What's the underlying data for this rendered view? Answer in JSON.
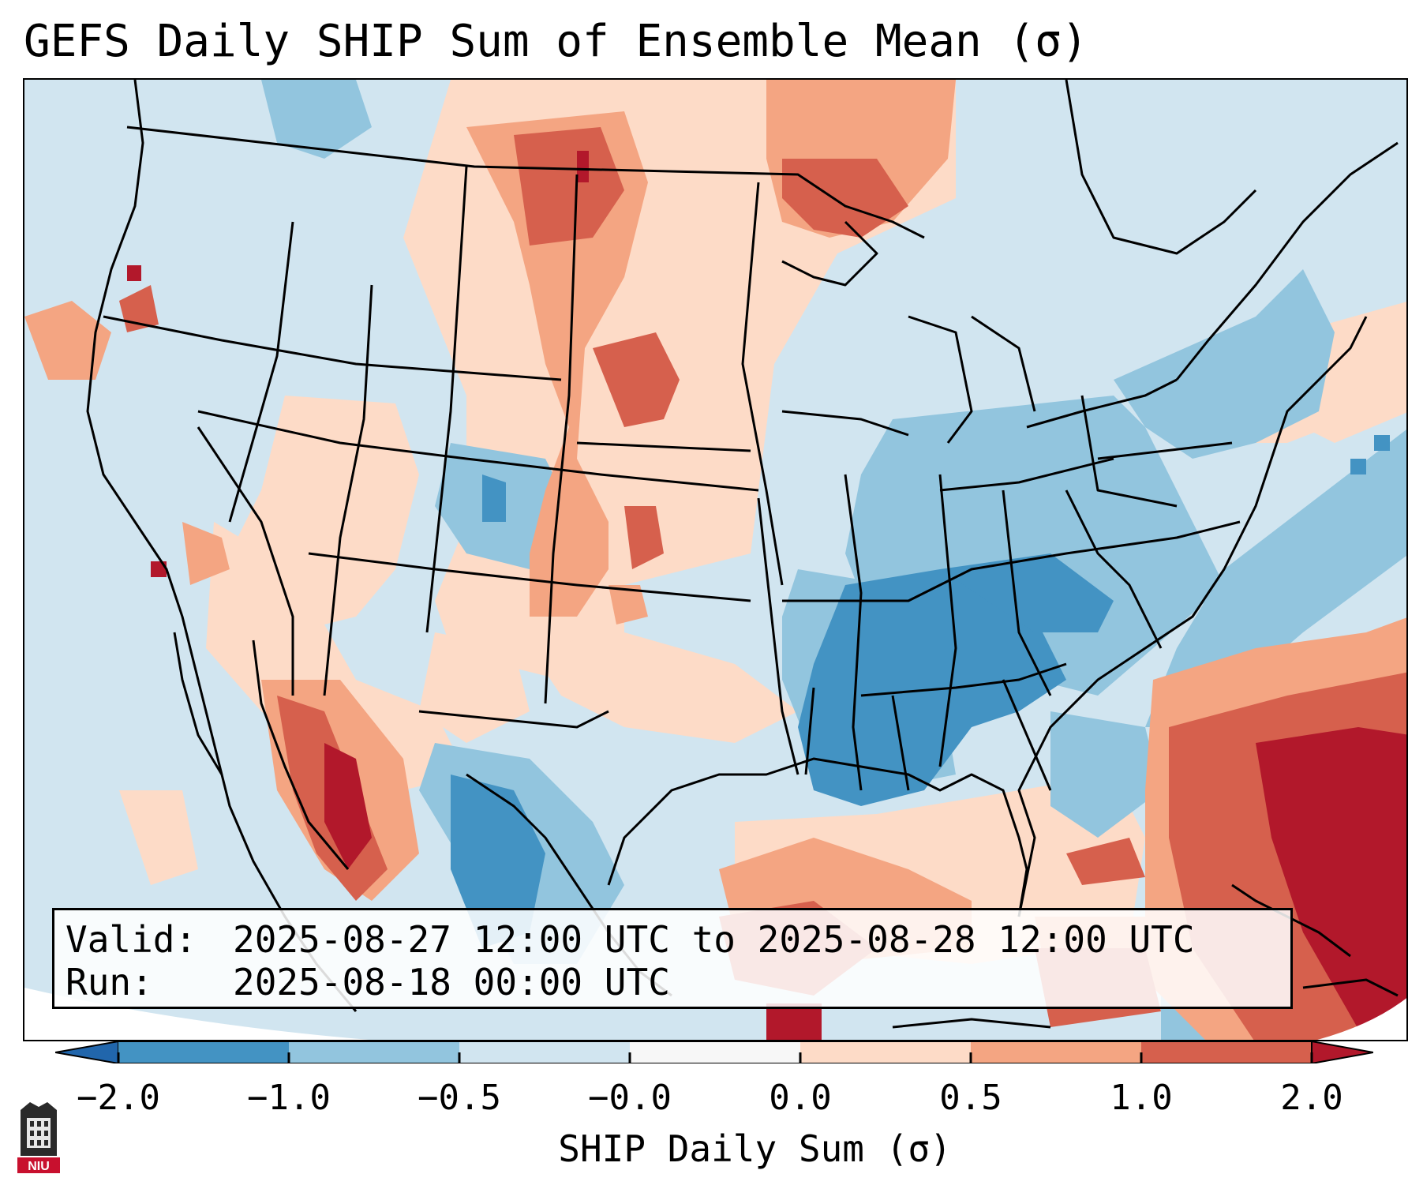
{
  "title": "GEFS Daily SHIP Sum of Ensemble Mean (σ)",
  "info": {
    "valid_label": "Valid:",
    "valid_value": "2025-08-27 12:00 UTC to 2025-08-28 12:00 UTC",
    "run_label": "Run:",
    "run_value": "2025-08-18 00:00 UTC"
  },
  "colorbar": {
    "label": "SHIP Daily Sum (σ)",
    "tick_labels": [
      "−2.0",
      "−1.0",
      "−0.5",
      "−0.0",
      "0.0",
      "0.5",
      "1.0",
      "2.0"
    ],
    "colors": [
      "#4393c3",
      "#92c5de",
      "#d1e5f0",
      "#f7f7f7",
      "#fddbc7",
      "#f4a582",
      "#d6604d",
      "#b2182b"
    ],
    "colors_extend_low": "#2166ac",
    "colors_extend_high": "#b2182b"
  },
  "logo": {
    "text": "NIU",
    "color": "#c8102e"
  }
}
